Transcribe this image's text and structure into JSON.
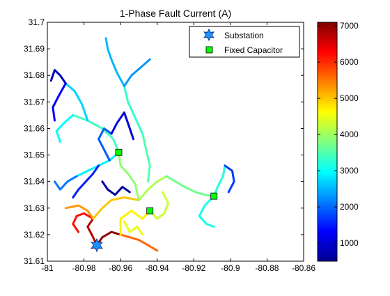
{
  "chart_data": {
    "type": "line",
    "title": "1-Phase Fault Current (A)",
    "xlabel": "",
    "ylabel": "",
    "xlim": [
      -81,
      -80.86
    ],
    "ylim": [
      31.61,
      31.7
    ],
    "x_ticks": [
      -81,
      -80.98,
      -80.96,
      -80.94,
      -80.92,
      -80.9,
      -80.88,
      -80.86
    ],
    "x_tick_labels": [
      "-81",
      "-80.98",
      "-80.96",
      "-80.94",
      "-80.92",
      "-80.9",
      "-80.88",
      "-80.86"
    ],
    "y_ticks": [
      31.61,
      31.62,
      31.63,
      31.64,
      31.65,
      31.66,
      31.67,
      31.68,
      31.69,
      31.7
    ],
    "y_tick_labels": [
      "31.61",
      "31.62",
      "31.63",
      "31.64",
      "31.65",
      "31.66",
      "31.67",
      "31.68",
      "31.69",
      "31.7"
    ],
    "grid": false,
    "legend": {
      "placement": "top-right",
      "entries": [
        {
          "label": "Substation",
          "marker": "hexagram",
          "color": "#1e90ff"
        },
        {
          "label": "Fixed Capacitor",
          "marker": "square",
          "color": "#00ff00"
        }
      ]
    },
    "colorbar": {
      "colormap": "jet",
      "range": [
        500,
        7100
      ],
      "ticks": [
        1000,
        2000,
        3000,
        4000,
        5000,
        6000,
        7000
      ],
      "tick_labels": [
        "1000",
        "2000",
        "3000",
        "4000",
        "5000",
        "6000",
        "7000"
      ]
    },
    "markers": {
      "substation": {
        "x": -80.973,
        "y": 31.616
      },
      "capacitors": [
        {
          "x": -80.961,
          "y": 31.651
        },
        {
          "x": -80.944,
          "y": 31.629
        },
        {
          "x": -80.909,
          "y": 31.6345
        }
      ]
    },
    "feeder_paths": [
      {
        "value": 7000,
        "points": [
          [
            -80.973,
            31.616
          ],
          [
            -80.97,
            31.619
          ],
          [
            -80.965,
            31.621
          ],
          [
            -80.96,
            31.62
          ]
        ]
      },
      {
        "value": 6700,
        "points": [
          [
            -80.973,
            31.616
          ],
          [
            -80.975,
            31.619
          ],
          [
            -80.978,
            31.623
          ],
          [
            -80.975,
            31.626
          ]
        ]
      },
      {
        "value": 6200,
        "points": [
          [
            -80.975,
            31.626
          ],
          [
            -80.98,
            31.628
          ],
          [
            -80.984,
            31.627
          ],
          [
            -80.986,
            31.624
          ],
          [
            -80.983,
            31.621
          ]
        ]
      },
      {
        "value": 5600,
        "points": [
          [
            -80.96,
            31.62
          ],
          [
            -80.955,
            31.619
          ],
          [
            -80.95,
            31.618
          ],
          [
            -80.945,
            31.616
          ],
          [
            -80.94,
            31.614
          ]
        ]
      },
      {
        "value": 5300,
        "points": [
          [
            -80.975,
            31.626
          ],
          [
            -80.978,
            31.629
          ],
          [
            -80.983,
            31.631
          ],
          [
            -80.99,
            31.63
          ]
        ]
      },
      {
        "value": 5000,
        "points": [
          [
            -80.975,
            31.626
          ],
          [
            -80.97,
            31.63
          ],
          [
            -80.965,
            31.633
          ],
          [
            -80.958,
            31.634
          ],
          [
            -80.95,
            31.633
          ]
        ]
      },
      {
        "value": 4700,
        "points": [
          [
            -80.96,
            31.62
          ],
          [
            -80.96,
            31.626
          ],
          [
            -80.954,
            31.629
          ],
          [
            -80.948,
            31.626
          ],
          [
            -80.944,
            31.629
          ]
        ]
      },
      {
        "value": 4500,
        "points": [
          [
            -80.958,
            31.625
          ],
          [
            -80.955,
            31.621
          ],
          [
            -80.951,
            31.623
          ],
          [
            -80.948,
            31.62
          ]
        ]
      },
      {
        "value": 4300,
        "points": [
          [
            -80.944,
            31.629
          ],
          [
            -80.94,
            31.626
          ],
          [
            -80.936,
            31.628
          ],
          [
            -80.934,
            31.632
          ],
          [
            -80.937,
            31.636
          ]
        ]
      },
      {
        "value": 4100,
        "points": [
          [
            -80.95,
            31.633
          ],
          [
            -80.945,
            31.637
          ],
          [
            -80.94,
            31.64
          ],
          [
            -80.935,
            31.642
          ]
        ]
      },
      {
        "value": 3900,
        "points": [
          [
            -80.95,
            31.633
          ],
          [
            -80.952,
            31.639
          ],
          [
            -80.956,
            31.643
          ],
          [
            -80.96,
            31.646
          ],
          [
            -80.961,
            31.651
          ]
        ]
      },
      {
        "value": 3700,
        "points": [
          [
            -80.935,
            31.642
          ],
          [
            -80.93,
            31.64
          ],
          [
            -80.925,
            31.638
          ],
          [
            -80.919,
            31.636
          ],
          [
            -80.914,
            31.635
          ],
          [
            -80.909,
            31.6345
          ]
        ]
      },
      {
        "value": 3500,
        "points": [
          [
            -80.945,
            31.64
          ],
          [
            -80.944,
            31.646
          ],
          [
            -80.946,
            31.652
          ],
          [
            -80.948,
            31.658
          ]
        ]
      },
      {
        "value": 3400,
        "points": [
          [
            -80.961,
            31.651
          ],
          [
            -80.964,
            31.656
          ],
          [
            -80.97,
            31.66
          ],
          [
            -80.978,
            31.663
          ],
          [
            -80.986,
            31.665
          ]
        ]
      },
      {
        "value": 3300,
        "points": [
          [
            -80.948,
            31.658
          ],
          [
            -80.952,
            31.664
          ],
          [
            -80.956,
            31.67
          ],
          [
            -80.958,
            31.676
          ]
        ]
      },
      {
        "value": 3200,
        "points": [
          [
            -80.909,
            31.6345
          ],
          [
            -80.907,
            31.638
          ],
          [
            -80.904,
            31.642
          ],
          [
            -80.903,
            31.646
          ]
        ]
      },
      {
        "value": 3100,
        "points": [
          [
            -80.909,
            31.6345
          ],
          [
            -80.914,
            31.631
          ],
          [
            -80.917,
            31.627
          ],
          [
            -80.913,
            31.624
          ],
          [
            -80.909,
            31.623
          ]
        ]
      },
      {
        "value": 3000,
        "points": [
          [
            -80.986,
            31.665
          ],
          [
            -80.991,
            31.662
          ],
          [
            -80.995,
            31.659
          ],
          [
            -80.993,
            31.655
          ]
        ]
      },
      {
        "value": 2900,
        "points": [
          [
            -80.961,
            31.651
          ],
          [
            -80.966,
            31.648
          ],
          [
            -80.972,
            31.646
          ],
          [
            -80.978,
            31.644
          ],
          [
            -80.984,
            31.642
          ]
        ]
      },
      {
        "value": 2700,
        "points": [
          [
            -80.978,
            31.663
          ],
          [
            -80.981,
            31.669
          ],
          [
            -80.985,
            31.674
          ],
          [
            -80.99,
            31.677
          ]
        ]
      },
      {
        "value": 2500,
        "points": [
          [
            -80.958,
            31.676
          ],
          [
            -80.962,
            31.681
          ],
          [
            -80.965,
            31.686
          ],
          [
            -80.967,
            31.69
          ],
          [
            -80.968,
            31.694
          ]
        ]
      },
      {
        "value": 2300,
        "points": [
          [
            -80.958,
            31.676
          ],
          [
            -80.954,
            31.68
          ],
          [
            -80.949,
            31.683
          ],
          [
            -80.944,
            31.686
          ]
        ]
      },
      {
        "value": 2100,
        "points": [
          [
            -80.984,
            31.642
          ],
          [
            -80.989,
            31.64
          ],
          [
            -80.993,
            31.637
          ],
          [
            -80.996,
            31.64
          ]
        ]
      },
      {
        "value": 1900,
        "points": [
          [
            -80.966,
            31.648
          ],
          [
            -80.969,
            31.652
          ],
          [
            -80.972,
            31.656
          ],
          [
            -80.969,
            31.66
          ],
          [
            -80.965,
            31.658
          ]
        ]
      },
      {
        "value": 1700,
        "points": [
          [
            -80.903,
            31.646
          ],
          [
            -80.899,
            31.644
          ],
          [
            -80.898,
            31.64
          ],
          [
            -80.901,
            31.636
          ]
        ]
      },
      {
        "value": 1500,
        "points": [
          [
            -80.972,
            31.646
          ],
          [
            -80.975,
            31.643
          ],
          [
            -80.979,
            31.64
          ],
          [
            -80.983,
            31.637
          ],
          [
            -80.986,
            31.634
          ]
        ]
      },
      {
        "value": 1300,
        "points": [
          [
            -80.99,
            31.677
          ],
          [
            -80.994,
            31.672
          ],
          [
            -80.997,
            31.668
          ],
          [
            -80.996,
            31.663
          ]
        ]
      },
      {
        "value": 1100,
        "points": [
          [
            -80.965,
            31.658
          ],
          [
            -80.962,
            31.662
          ],
          [
            -80.958,
            31.666
          ],
          [
            -80.956,
            31.662
          ],
          [
            -80.953,
            31.656
          ]
        ]
      },
      {
        "value": 900,
        "points": [
          [
            -80.99,
            31.677
          ],
          [
            -80.993,
            31.68
          ],
          [
            -80.996,
            31.682
          ],
          [
            -80.998,
            31.678
          ]
        ]
      },
      {
        "value": 700,
        "points": [
          [
            -80.97,
            31.64
          ],
          [
            -80.967,
            31.637
          ],
          [
            -80.963,
            31.635
          ],
          [
            -80.959,
            31.638
          ],
          [
            -80.955,
            31.636
          ]
        ]
      }
    ]
  }
}
